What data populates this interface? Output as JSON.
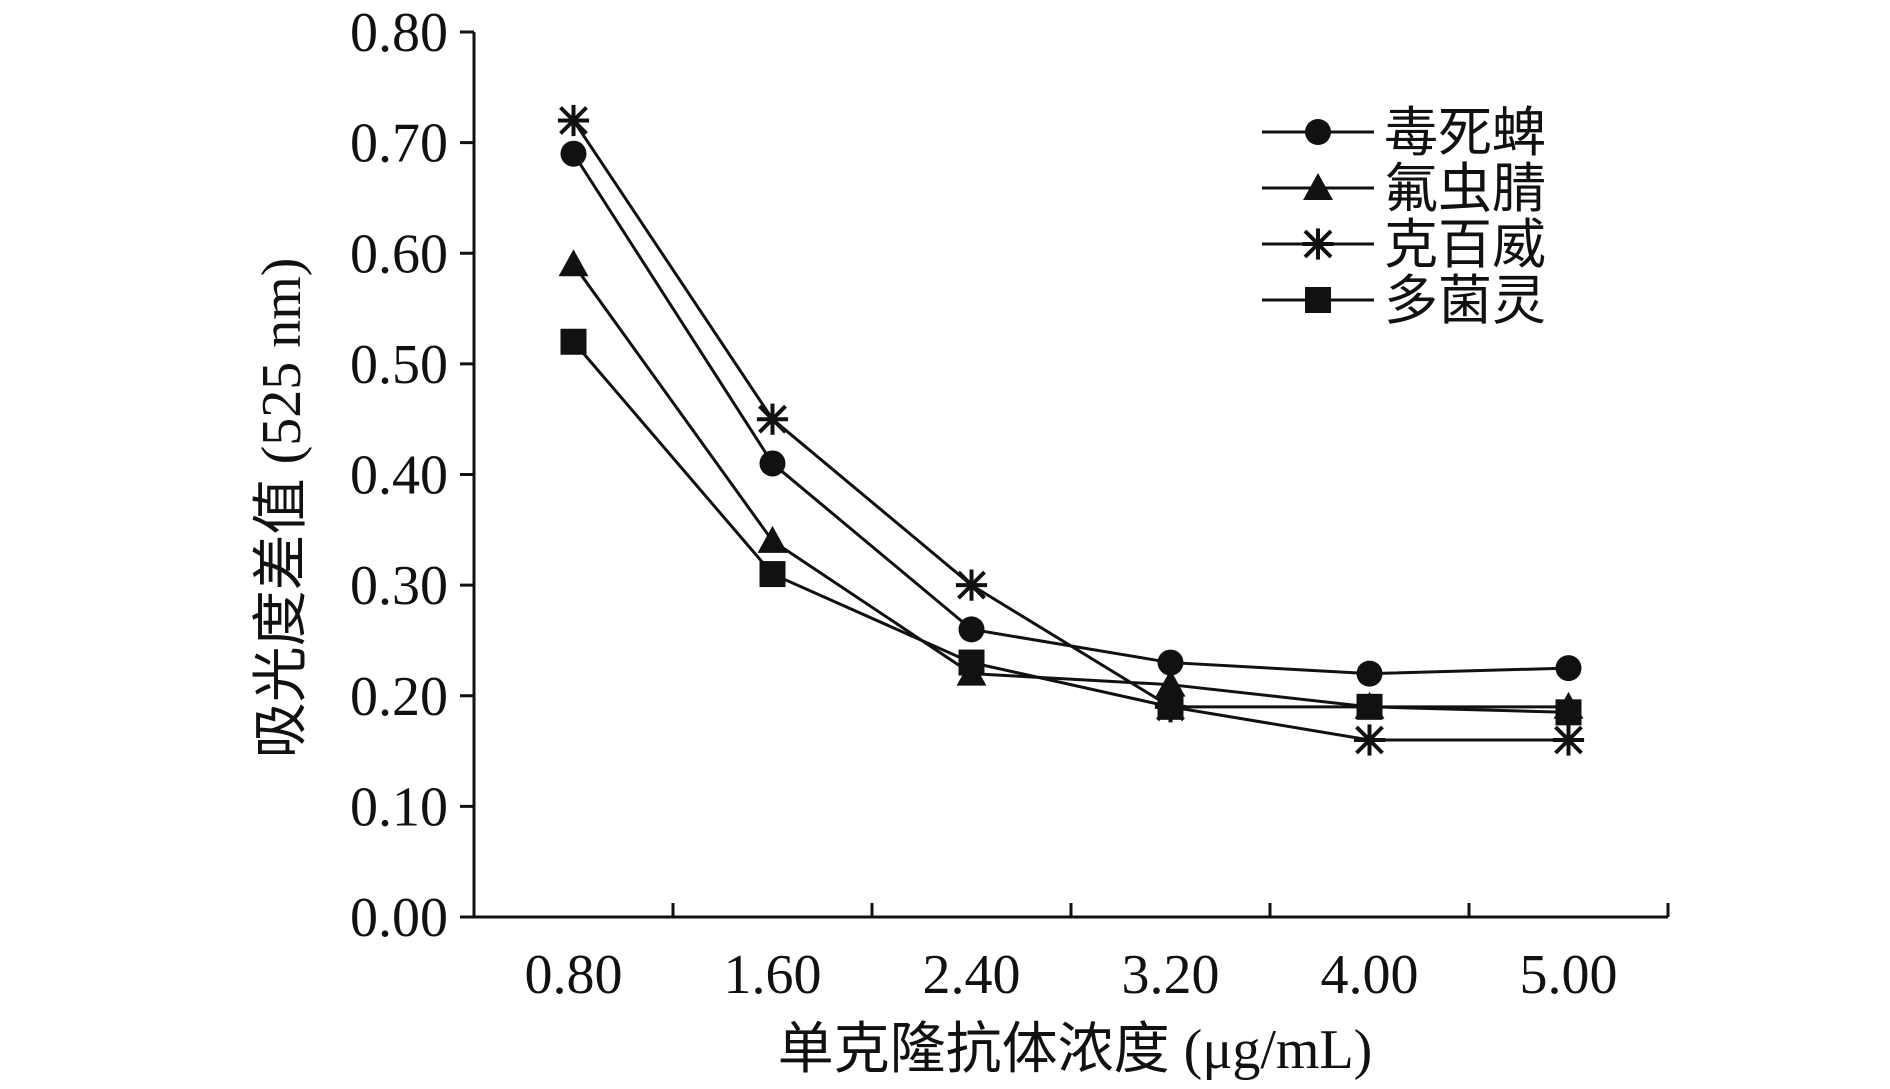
{
  "chart_data": {
    "type": "line",
    "title": "",
    "xlabel": "单克隆抗体浓度 (μg/mL)",
    "ylabel": "吸光度差值 (525 nm)",
    "categories": [
      "0.80",
      "1.60",
      "2.40",
      "3.20",
      "4.00",
      "5.00"
    ],
    "y_ticks": [
      "0.00",
      "0.10",
      "0.20",
      "0.30",
      "0.40",
      "0.50",
      "0.60",
      "0.70",
      "0.80"
    ],
    "ylim": [
      0,
      0.8
    ],
    "grid": false,
    "legend_position": "top-right",
    "series": [
      {
        "name": "毒死蜱",
        "marker": "circle",
        "values": [
          0.69,
          0.41,
          0.26,
          0.23,
          0.22,
          0.225
        ]
      },
      {
        "name": "氟虫腈",
        "marker": "triangle",
        "values": [
          0.59,
          0.34,
          0.22,
          0.21,
          0.19,
          0.19
        ]
      },
      {
        "name": "克百威",
        "marker": "asterisk",
        "values": [
          0.72,
          0.45,
          0.3,
          0.19,
          0.16,
          0.16
        ]
      },
      {
        "name": "多菌灵",
        "marker": "square",
        "values": [
          0.52,
          0.31,
          0.23,
          0.19,
          0.19,
          0.185
        ]
      }
    ],
    "colors": {
      "line": "#111111",
      "marker": "#111111"
    }
  }
}
